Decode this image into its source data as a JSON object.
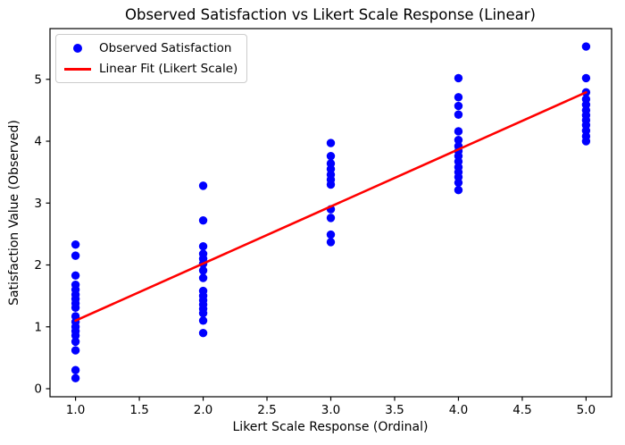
{
  "chart_data": {
    "type": "scatter",
    "title": "Observed Satisfaction vs Likert Scale Response (Linear)",
    "xlabel": "Likert Scale Response (Ordinal)",
    "ylabel": "Satisfaction Value (Observed)",
    "xlim": [
      0.8,
      5.2
    ],
    "ylim": [
      -0.13,
      5.82
    ],
    "grid": false,
    "legend_position": "upper left",
    "x_ticks": {
      "values": [
        1,
        1.5,
        2,
        2.5,
        3,
        3.5,
        4,
        4.5,
        5
      ],
      "labels": [
        "1.0",
        "1.5",
        "2.0",
        "2.5",
        "3.0",
        "3.5",
        "4.0",
        "4.5",
        "5.0"
      ]
    },
    "y_ticks": {
      "values": [
        0,
        1,
        2,
        3,
        4,
        5
      ],
      "labels": [
        "0",
        "1",
        "2",
        "3",
        "4",
        "5"
      ]
    },
    "series": [
      {
        "name": "Observed Satisfaction",
        "kind": "scatter",
        "color": "#0000ff",
        "points": [
          [
            1,
            2.33
          ],
          [
            1,
            2.15
          ],
          [
            1,
            1.83
          ],
          [
            1,
            1.68
          ],
          [
            1,
            1.6
          ],
          [
            1,
            1.52
          ],
          [
            1,
            1.45
          ],
          [
            1,
            1.38
          ],
          [
            1,
            1.31
          ],
          [
            1,
            1.17
          ],
          [
            1,
            1.08
          ],
          [
            1,
            1.0
          ],
          [
            1,
            0.93
          ],
          [
            1,
            0.86
          ],
          [
            1,
            0.76
          ],
          [
            1,
            0.62
          ],
          [
            1,
            0.3
          ],
          [
            1,
            0.17
          ],
          [
            2,
            3.28
          ],
          [
            2,
            2.72
          ],
          [
            2,
            2.3
          ],
          [
            2,
            2.18
          ],
          [
            2,
            2.1
          ],
          [
            2,
            2.02
          ],
          [
            2,
            1.91
          ],
          [
            2,
            1.79
          ],
          [
            2,
            1.58
          ],
          [
            2,
            1.5
          ],
          [
            2,
            1.43
          ],
          [
            2,
            1.36
          ],
          [
            2,
            1.29
          ],
          [
            2,
            1.22
          ],
          [
            2,
            1.1
          ],
          [
            2,
            0.9
          ],
          [
            3,
            3.97
          ],
          [
            3,
            3.76
          ],
          [
            3,
            3.64
          ],
          [
            3,
            3.55
          ],
          [
            3,
            3.46
          ],
          [
            3,
            3.38
          ],
          [
            3,
            3.3
          ],
          [
            3,
            2.9
          ],
          [
            3,
            2.76
          ],
          [
            3,
            2.49
          ],
          [
            3,
            2.37
          ],
          [
            4,
            5.02
          ],
          [
            4,
            4.71
          ],
          [
            4,
            4.57
          ],
          [
            4,
            4.43
          ],
          [
            4,
            4.16
          ],
          [
            4,
            4.02
          ],
          [
            4,
            3.92
          ],
          [
            4,
            3.84
          ],
          [
            4,
            3.76
          ],
          [
            4,
            3.67
          ],
          [
            4,
            3.58
          ],
          [
            4,
            3.5
          ],
          [
            4,
            3.42
          ],
          [
            4,
            3.33
          ],
          [
            4,
            3.21
          ],
          [
            5,
            5.53
          ],
          [
            5,
            5.02
          ],
          [
            5,
            4.79
          ],
          [
            5,
            4.68
          ],
          [
            5,
            4.59
          ],
          [
            5,
            4.5
          ],
          [
            5,
            4.42
          ],
          [
            5,
            4.34
          ],
          [
            5,
            4.26
          ],
          [
            5,
            4.17
          ],
          [
            5,
            4.08
          ],
          [
            5,
            4.0
          ]
        ]
      },
      {
        "name": "Linear Fit (Likert Scale)",
        "kind": "line",
        "color": "#ff0000",
        "points": [
          [
            1,
            1.1
          ],
          [
            5,
            4.79
          ]
        ]
      }
    ]
  },
  "legend": {
    "items": [
      {
        "label": "Observed Satisfaction",
        "marker": "dot",
        "color": "#0000ff"
      },
      {
        "label": "Linear Fit (Likert Scale)",
        "marker": "line",
        "color": "#ff0000"
      }
    ]
  }
}
